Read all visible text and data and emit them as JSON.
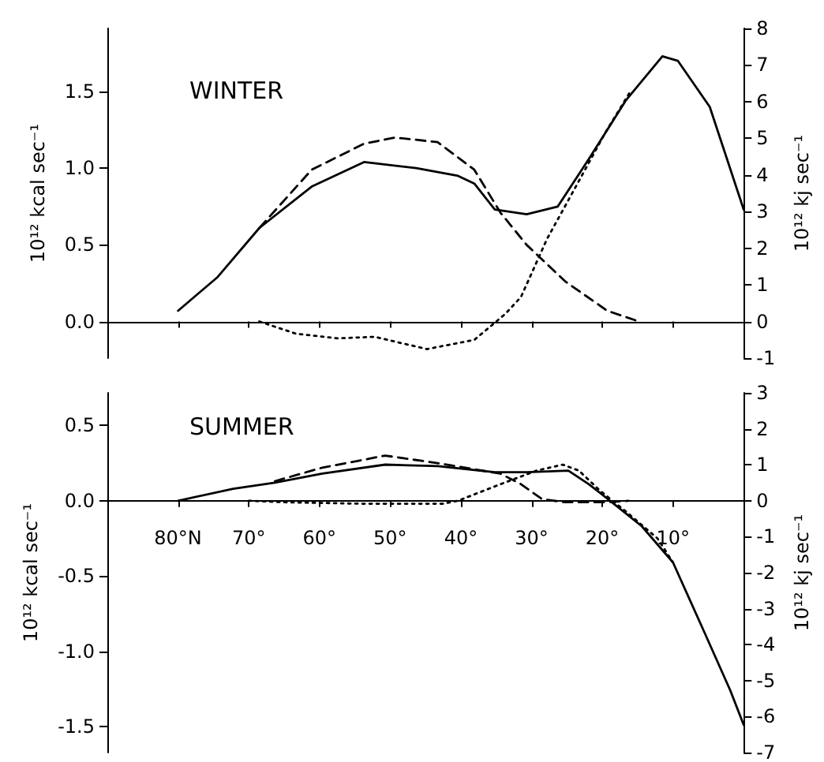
{
  "chart_data": [
    {
      "type": "line",
      "title": "WINTER",
      "ylabel": "10¹² kcal sec⁻¹",
      "y2label": "10¹² kj sec⁻¹",
      "xlim": [
        90,
        0
      ],
      "xticks": [
        {
          "value": 80,
          "label": null
        },
        {
          "value": 70,
          "label": null
        },
        {
          "value": 60,
          "label": null
        },
        {
          "value": 50,
          "label": null
        },
        {
          "value": 40,
          "label": null
        },
        {
          "value": 30,
          "label": null
        },
        {
          "value": 20,
          "label": null
        },
        {
          "value": 10,
          "label": null
        }
      ],
      "ylim": [
        -0.239,
        1.912
      ],
      "yticks": [
        {
          "value": 0,
          "label": "0.0"
        },
        {
          "value": 0.5,
          "label": "0.5"
        },
        {
          "value": 1,
          "label": "1.0"
        },
        {
          "value": 1.5,
          "label": "1.5"
        }
      ],
      "y2lim": [
        -1,
        8
      ],
      "y2ticks": [
        -1,
        0,
        1,
        2,
        3,
        4,
        5,
        6,
        7,
        8
      ],
      "tick_labels": "y",
      "marker": "none",
      "series": [
        {
          "color": "#000000",
          "line_style": "solid",
          "x": [
            80,
            74.4,
            68.5,
            61.1,
            53.7,
            46.3,
            40.4,
            38.1,
            35.2,
            30.7,
            26.3,
            21.9,
            16.7,
            11.5,
            9.3,
            4.8,
            0
          ],
          "values": [
            0.07,
            0.29,
            0.61,
            0.88,
            1.04,
            1.0,
            0.95,
            0.9,
            0.73,
            0.7,
            0.75,
            1.06,
            1.44,
            1.73,
            1.7,
            1.4,
            0.73
          ]
        },
        {
          "color": "#000000",
          "line_style": "dashed",
          "x": [
            68.5,
            61.1,
            53.7,
            49.3,
            43.3,
            38.1,
            34.4,
            30.7,
            25.2,
            19.3,
            14.8
          ],
          "values": [
            0.61,
            0.99,
            1.16,
            1.2,
            1.17,
            0.99,
            0.71,
            0.5,
            0.26,
            0.07,
            0
          ]
        },
        {
          "color": "#000000",
          "line_style": "dotted",
          "x": [
            68.5,
            63.3,
            57.4,
            52.2,
            44.8,
            38.1,
            33.7,
            31.5,
            27.8,
            24.1,
            19.6,
            15.9
          ],
          "values": [
            0,
            -0.08,
            -0.11,
            -0.1,
            -0.18,
            -0.12,
            0.05,
            0.16,
            0.54,
            0.85,
            1.23,
            1.51
          ]
        }
      ]
    },
    {
      "type": "line",
      "title": "SUMMER",
      "ylabel": "10¹² kcal sec⁻¹",
      "y2label": "10¹² kj sec⁻¹",
      "xlim": [
        90,
        0
      ],
      "xticks": [
        {
          "value": 80,
          "label": "80°N"
        },
        {
          "value": 70,
          "label": "70°"
        },
        {
          "value": 60,
          "label": "60°"
        },
        {
          "value": 50,
          "label": "50°"
        },
        {
          "value": 40,
          "label": "40°"
        },
        {
          "value": 30,
          "label": "30°"
        },
        {
          "value": 20,
          "label": "20°"
        },
        {
          "value": 10,
          "label": "10°"
        }
      ],
      "ylim": [
        -1.673,
        0.717
      ],
      "yticks": [
        {
          "value": -1.5,
          "label": "-1.5"
        },
        {
          "value": -1,
          "label": "-1.0"
        },
        {
          "value": -0.5,
          "label": "-0.5"
        },
        {
          "value": 0,
          "label": "0.0"
        },
        {
          "value": 0.5,
          "label": "0.5"
        }
      ],
      "y2lim": [
        -7,
        3
      ],
      "y2ticks": [
        -7,
        -6,
        -5,
        -4,
        -3,
        -2,
        -1,
        0,
        1,
        2,
        3
      ],
      "marker": "none",
      "series": [
        {
          "color": "#000000",
          "line_style": "solid",
          "x": [
            80,
            72.2,
            66.3,
            59.6,
            50.7,
            43.3,
            35.2,
            30.7,
            24.8,
            21.9,
            18.9,
            14.4,
            10,
            5.6,
            1.9,
            0
          ],
          "values": [
            0,
            0.08,
            0.12,
            0.18,
            0.24,
            0.23,
            0.19,
            0.19,
            0.2,
            0.11,
            0,
            -0.17,
            -0.41,
            -0.87,
            -1.26,
            -1.49
          ]
        },
        {
          "color": "#000000",
          "line_style": "dashed",
          "x": [
            66.3,
            59.6,
            50.7,
            43.3,
            34.4,
            31.5,
            28.5,
            25.2,
            19.3,
            16.3
          ],
          "values": [
            0.13,
            0.22,
            0.3,
            0.25,
            0.18,
            0.11,
            0.01,
            -0.01,
            -0.01,
            0
          ]
        },
        {
          "color": "#000000",
          "line_style": "dotted",
          "x": [
            70,
            64.8,
            53.7,
            42.6,
            40.4,
            34.4,
            29.3,
            25.6,
            23.3,
            20.4,
            16.7,
            12.2,
            10
          ],
          "values": [
            0,
            -0.01,
            -0.02,
            -0.02,
            0,
            0.11,
            0.2,
            0.24,
            0.2,
            0.07,
            -0.07,
            -0.25,
            -0.41
          ]
        }
      ]
    }
  ]
}
